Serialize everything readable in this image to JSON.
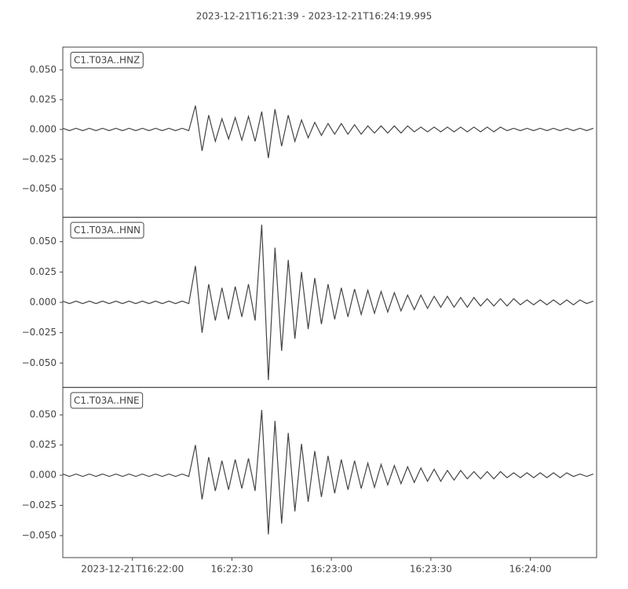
{
  "chart_data": [
    {
      "type": "line",
      "title": "2023-12-21T16:21:39  -  2023-12-21T16:24:19.995",
      "xlim": [
        "2023-12-21T16:21:39",
        "2023-12-21T16:24:19.995"
      ],
      "ylim": [
        -0.0737,
        0.0691
      ],
      "yticks": [
        {
          "value": -0.05,
          "label": "−0.050"
        },
        {
          "value": -0.025,
          "label": "−0.025"
        },
        {
          "value": 0,
          "label": "0.000"
        },
        {
          "value": 0.025,
          "label": "0.025"
        },
        {
          "value": 0.05,
          "label": "0.050"
        }
      ],
      "x": [
        "2023-12-21T16:21:39",
        "2023-12-21T16:21:41",
        "2023-12-21T16:21:43",
        "2023-12-21T16:21:45",
        "2023-12-21T16:21:47",
        "2023-12-21T16:21:49",
        "2023-12-21T16:21:51",
        "2023-12-21T16:21:53",
        "2023-12-21T16:21:55",
        "2023-12-21T16:21:57",
        "2023-12-21T16:21:59",
        "2023-12-21T16:22:01",
        "2023-12-21T16:22:03",
        "2023-12-21T16:22:05",
        "2023-12-21T16:22:07",
        "2023-12-21T16:22:09",
        "2023-12-21T16:22:11",
        "2023-12-21T16:22:13",
        "2023-12-21T16:22:15",
        "2023-12-21T16:22:17",
        "2023-12-21T16:22:19",
        "2023-12-21T16:22:21",
        "2023-12-21T16:22:23",
        "2023-12-21T16:22:25",
        "2023-12-21T16:22:27",
        "2023-12-21T16:22:29",
        "2023-12-21T16:22:31",
        "2023-12-21T16:22:33",
        "2023-12-21T16:22:35",
        "2023-12-21T16:22:37",
        "2023-12-21T16:22:39",
        "2023-12-21T16:22:41",
        "2023-12-21T16:22:43",
        "2023-12-21T16:22:45",
        "2023-12-21T16:22:47",
        "2023-12-21T16:22:49",
        "2023-12-21T16:22:51",
        "2023-12-21T16:22:53",
        "2023-12-21T16:22:55",
        "2023-12-21T16:22:57",
        "2023-12-21T16:22:59",
        "2023-12-21T16:23:01",
        "2023-12-21T16:23:03",
        "2023-12-21T16:23:05",
        "2023-12-21T16:23:07",
        "2023-12-21T16:23:09",
        "2023-12-21T16:23:11",
        "2023-12-21T16:23:13",
        "2023-12-21T16:23:15",
        "2023-12-21T16:23:17",
        "2023-12-21T16:23:19",
        "2023-12-21T16:23:21",
        "2023-12-21T16:23:23",
        "2023-12-21T16:23:25",
        "2023-12-21T16:23:27",
        "2023-12-21T16:23:29",
        "2023-12-21T16:23:31",
        "2023-12-21T16:23:33",
        "2023-12-21T16:23:35",
        "2023-12-21T16:23:37",
        "2023-12-21T16:23:39",
        "2023-12-21T16:23:41",
        "2023-12-21T16:23:43",
        "2023-12-21T16:23:45",
        "2023-12-21T16:23:47",
        "2023-12-21T16:23:49",
        "2023-12-21T16:23:51",
        "2023-12-21T16:23:53",
        "2023-12-21T16:23:55",
        "2023-12-21T16:23:57",
        "2023-12-21T16:23:59",
        "2023-12-21T16:24:01",
        "2023-12-21T16:24:03",
        "2023-12-21T16:24:05",
        "2023-12-21T16:24:07",
        "2023-12-21T16:24:09",
        "2023-12-21T16:24:11",
        "2023-12-21T16:24:13",
        "2023-12-21T16:24:15",
        "2023-12-21T16:24:17",
        "2023-12-21T16:24:19"
      ],
      "series": [
        {
          "name": "C1.T03A..HNZ",
          "color": "#444444",
          "values": [
            0.001,
            -0.001,
            0.001,
            -0.001,
            0.001,
            -0.001,
            0.001,
            -0.001,
            0.001,
            -0.001,
            0.001,
            -0.001,
            0.001,
            -0.001,
            0.001,
            -0.001,
            0.001,
            -0.001,
            0.001,
            -0.001,
            0.02,
            -0.018,
            0.012,
            -0.01,
            0.009,
            -0.008,
            0.01,
            -0.009,
            0.011,
            -0.01,
            0.015,
            -0.024,
            0.017,
            -0.014,
            0.012,
            -0.01,
            0.008,
            -0.007,
            0.006,
            -0.005,
            0.005,
            -0.004,
            0.005,
            -0.004,
            0.004,
            -0.004,
            0.003,
            -0.003,
            0.003,
            -0.003,
            0.003,
            -0.003,
            0.003,
            -0.002,
            0.002,
            -0.002,
            0.002,
            -0.002,
            0.002,
            -0.002,
            0.002,
            -0.002,
            0.002,
            -0.002,
            0.002,
            -0.002,
            0.002,
            -0.001,
            0.001,
            -0.001,
            0.001,
            -0.001,
            0.001,
            -0.001,
            0.001,
            -0.001,
            0.001,
            -0.001,
            0.001,
            -0.001,
            0.001
          ]
        }
      ]
    },
    {
      "type": "line",
      "xlim": [
        "2023-12-21T16:21:39",
        "2023-12-21T16:24:19.995"
      ],
      "ylim": [
        -0.0701,
        0.0701
      ],
      "yticks": [
        {
          "value": -0.05,
          "label": "−0.050"
        },
        {
          "value": -0.025,
          "label": "−0.025"
        },
        {
          "value": 0,
          "label": "0.000"
        },
        {
          "value": 0.025,
          "label": "0.025"
        },
        {
          "value": 0.05,
          "label": "0.050"
        }
      ],
      "x": [
        "2023-12-21T16:21:39",
        "2023-12-21T16:21:41",
        "2023-12-21T16:21:43",
        "2023-12-21T16:21:45",
        "2023-12-21T16:21:47",
        "2023-12-21T16:21:49",
        "2023-12-21T16:21:51",
        "2023-12-21T16:21:53",
        "2023-12-21T16:21:55",
        "2023-12-21T16:21:57",
        "2023-12-21T16:21:59",
        "2023-12-21T16:22:01",
        "2023-12-21T16:22:03",
        "2023-12-21T16:22:05",
        "2023-12-21T16:22:07",
        "2023-12-21T16:22:09",
        "2023-12-21T16:22:11",
        "2023-12-21T16:22:13",
        "2023-12-21T16:22:15",
        "2023-12-21T16:22:17",
        "2023-12-21T16:22:19",
        "2023-12-21T16:22:21",
        "2023-12-21T16:22:23",
        "2023-12-21T16:22:25",
        "2023-12-21T16:22:27",
        "2023-12-21T16:22:29",
        "2023-12-21T16:22:31",
        "2023-12-21T16:22:33",
        "2023-12-21T16:22:35",
        "2023-12-21T16:22:37",
        "2023-12-21T16:22:39",
        "2023-12-21T16:22:41",
        "2023-12-21T16:22:43",
        "2023-12-21T16:22:45",
        "2023-12-21T16:22:47",
        "2023-12-21T16:22:49",
        "2023-12-21T16:22:51",
        "2023-12-21T16:22:53",
        "2023-12-21T16:22:55",
        "2023-12-21T16:22:57",
        "2023-12-21T16:22:59",
        "2023-12-21T16:23:01",
        "2023-12-21T16:23:03",
        "2023-12-21T16:23:05",
        "2023-12-21T16:23:07",
        "2023-12-21T16:23:09",
        "2023-12-21T16:23:11",
        "2023-12-21T16:23:13",
        "2023-12-21T16:23:15",
        "2023-12-21T16:23:17",
        "2023-12-21T16:23:19",
        "2023-12-21T16:23:21",
        "2023-12-21T16:23:23",
        "2023-12-21T16:23:25",
        "2023-12-21T16:23:27",
        "2023-12-21T16:23:29",
        "2023-12-21T16:23:31",
        "2023-12-21T16:23:33",
        "2023-12-21T16:23:35",
        "2023-12-21T16:23:37",
        "2023-12-21T16:23:39",
        "2023-12-21T16:23:41",
        "2023-12-21T16:23:43",
        "2023-12-21T16:23:45",
        "2023-12-21T16:23:47",
        "2023-12-21T16:23:49",
        "2023-12-21T16:23:51",
        "2023-12-21T16:23:53",
        "2023-12-21T16:23:55",
        "2023-12-21T16:23:57",
        "2023-12-21T16:23:59",
        "2023-12-21T16:24:01",
        "2023-12-21T16:24:03",
        "2023-12-21T16:24:05",
        "2023-12-21T16:24:07",
        "2023-12-21T16:24:09",
        "2023-12-21T16:24:11",
        "2023-12-21T16:24:13",
        "2023-12-21T16:24:15",
        "2023-12-21T16:24:17",
        "2023-12-21T16:24:19"
      ],
      "series": [
        {
          "name": "C1.T03A..HNN",
          "color": "#444444",
          "values": [
            0.001,
            -0.001,
            0.001,
            -0.001,
            0.001,
            -0.001,
            0.001,
            -0.001,
            0.001,
            -0.001,
            0.001,
            -0.001,
            0.001,
            -0.001,
            0.001,
            -0.001,
            0.001,
            -0.001,
            0.001,
            -0.001,
            0.03,
            -0.025,
            0.015,
            -0.015,
            0.012,
            -0.014,
            0.013,
            -0.012,
            0.015,
            -0.015,
            0.064,
            -0.064,
            0.045,
            -0.04,
            0.035,
            -0.03,
            0.025,
            -0.022,
            0.02,
            -0.018,
            0.015,
            -0.014,
            0.012,
            -0.012,
            0.011,
            -0.01,
            0.01,
            -0.009,
            0.009,
            -0.008,
            0.008,
            -0.007,
            0.006,
            -0.006,
            0.006,
            -0.005,
            0.005,
            -0.004,
            0.005,
            -0.004,
            0.004,
            -0.004,
            0.004,
            -0.003,
            0.003,
            -0.003,
            0.003,
            -0.003,
            0.003,
            -0.002,
            0.002,
            -0.002,
            0.002,
            -0.002,
            0.002,
            -0.002,
            0.002,
            -0.002,
            0.002,
            -0.001,
            0.001
          ]
        }
      ]
    },
    {
      "type": "line",
      "xlim": [
        "2023-12-21T16:21:39",
        "2023-12-21T16:24:19.995"
      ],
      "ylim": [
        -0.0682,
        0.0727
      ],
      "yticks": [
        {
          "value": -0.05,
          "label": "−0.050"
        },
        {
          "value": -0.025,
          "label": "−0.025"
        },
        {
          "value": 0,
          "label": "0.000"
        },
        {
          "value": 0.025,
          "label": "0.025"
        },
        {
          "value": 0.05,
          "label": "0.050"
        }
      ],
      "xticks": [
        "2023-12-21T16:22:00",
        {
          "value": "2023-12-21T16:22:30",
          "label": "16:22:30"
        },
        {
          "value": "2023-12-21T16:23:00",
          "label": "16:23:00"
        },
        {
          "value": "2023-12-21T16:23:30",
          "label": "16:23:30"
        },
        {
          "value": "2023-12-21T16:24:00",
          "label": "16:24:00"
        }
      ],
      "x": [
        "2023-12-21T16:21:39",
        "2023-12-21T16:21:41",
        "2023-12-21T16:21:43",
        "2023-12-21T16:21:45",
        "2023-12-21T16:21:47",
        "2023-12-21T16:21:49",
        "2023-12-21T16:21:51",
        "2023-12-21T16:21:53",
        "2023-12-21T16:21:55",
        "2023-12-21T16:21:57",
        "2023-12-21T16:21:59",
        "2023-12-21T16:22:01",
        "2023-12-21T16:22:03",
        "2023-12-21T16:22:05",
        "2023-12-21T16:22:07",
        "2023-12-21T16:22:09",
        "2023-12-21T16:22:11",
        "2023-12-21T16:22:13",
        "2023-12-21T16:22:15",
        "2023-12-21T16:22:17",
        "2023-12-21T16:22:19",
        "2023-12-21T16:22:21",
        "2023-12-21T16:22:23",
        "2023-12-21T16:22:25",
        "2023-12-21T16:22:27",
        "2023-12-21T16:22:29",
        "2023-12-21T16:22:31",
        "2023-12-21T16:22:33",
        "2023-12-21T16:22:35",
        "2023-12-21T16:22:37",
        "2023-12-21T16:22:39",
        "2023-12-21T16:22:41",
        "2023-12-21T16:22:43",
        "2023-12-21T16:22:45",
        "2023-12-21T16:22:47",
        "2023-12-21T16:22:49",
        "2023-12-21T16:22:51",
        "2023-12-21T16:22:53",
        "2023-12-21T16:22:55",
        "2023-12-21T16:22:57",
        "2023-12-21T16:22:59",
        "2023-12-21T16:23:01",
        "2023-12-21T16:23:03",
        "2023-12-21T16:23:05",
        "2023-12-21T16:23:07",
        "2023-12-21T16:23:09",
        "2023-12-21T16:23:11",
        "2023-12-21T16:23:13",
        "2023-12-21T16:23:15",
        "2023-12-21T16:23:17",
        "2023-12-21T16:23:19",
        "2023-12-21T16:23:21",
        "2023-12-21T16:23:23",
        "2023-12-21T16:23:25",
        "2023-12-21T16:23:27",
        "2023-12-21T16:23:29",
        "2023-12-21T16:23:31",
        "2023-12-21T16:23:33",
        "2023-12-21T16:23:35",
        "2023-12-21T16:23:37",
        "2023-12-21T16:23:39",
        "2023-12-21T16:23:41",
        "2023-12-21T16:23:43",
        "2023-12-21T16:23:45",
        "2023-12-21T16:23:47",
        "2023-12-21T16:23:49",
        "2023-12-21T16:23:51",
        "2023-12-21T16:23:53",
        "2023-12-21T16:23:55",
        "2023-12-21T16:23:57",
        "2023-12-21T16:23:59",
        "2023-12-21T16:24:01",
        "2023-12-21T16:24:03",
        "2023-12-21T16:24:05",
        "2023-12-21T16:24:07",
        "2023-12-21T16:24:09",
        "2023-12-21T16:24:11",
        "2023-12-21T16:24:13",
        "2023-12-21T16:24:15",
        "2023-12-21T16:24:17",
        "2023-12-21T16:24:19"
      ],
      "series": [
        {
          "name": "C1.T03A..HNE",
          "color": "#444444",
          "values": [
            0.001,
            -0.001,
            0.001,
            -0.001,
            0.001,
            -0.001,
            0.001,
            -0.001,
            0.001,
            -0.001,
            0.001,
            -0.001,
            0.001,
            -0.001,
            0.001,
            -0.001,
            0.001,
            -0.001,
            0.001,
            -0.001,
            0.025,
            -0.02,
            0.015,
            -0.013,
            0.012,
            -0.012,
            0.013,
            -0.011,
            0.014,
            -0.013,
            0.054,
            -0.049,
            0.045,
            -0.04,
            0.035,
            -0.03,
            0.026,
            -0.022,
            0.02,
            -0.018,
            0.016,
            -0.015,
            0.013,
            -0.012,
            0.012,
            -0.011,
            0.01,
            -0.01,
            0.009,
            -0.008,
            0.008,
            -0.007,
            0.007,
            -0.006,
            0.006,
            -0.005,
            0.005,
            -0.005,
            0.004,
            -0.004,
            0.004,
            -0.003,
            0.003,
            -0.003,
            0.003,
            -0.003,
            0.003,
            -0.002,
            0.002,
            -0.002,
            0.002,
            -0.002,
            0.002,
            -0.002,
            0.002,
            -0.002,
            0.002,
            -0.001,
            0.001,
            -0.001,
            0.001
          ]
        }
      ]
    }
  ]
}
